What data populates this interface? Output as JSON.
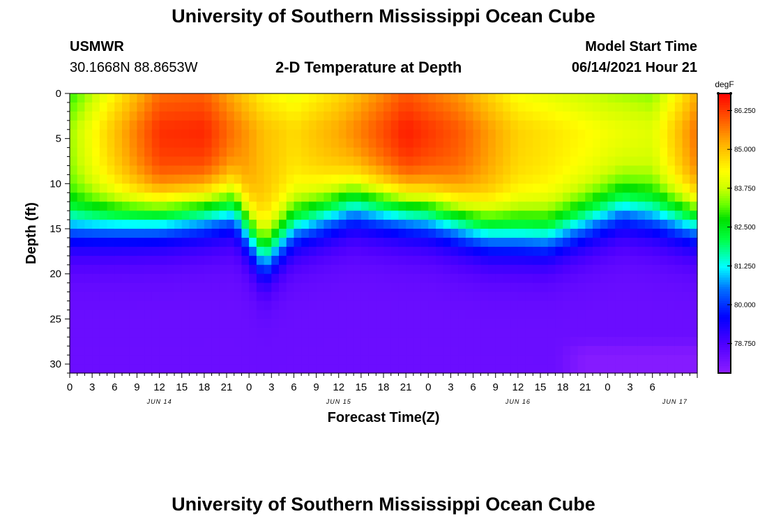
{
  "page": {
    "title_top": "University of Southern Mississippi Ocean Cube",
    "title_bottom": "University of Southern Mississippi Ocean Cube",
    "station_name": "USMWR",
    "station_coords": "30.1668N  88.8653W",
    "plot_title": "2-D Temperature at Depth",
    "model_start_label": "Model Start Time",
    "model_start_value": "06/14/2021 Hour 21"
  },
  "chart_data": {
    "type": "heatmap",
    "title": "2-D Temperature at Depth",
    "xlabel": "Forecast Time(Z)",
    "ylabel": "Depth (ft)",
    "x_hours": [
      0,
      84
    ],
    "ylim": [
      0,
      31
    ],
    "y_ticks": [
      0,
      5,
      10,
      15,
      20,
      25,
      30
    ],
    "x_tick_labels": [
      "0",
      "3",
      "6",
      "9",
      "12",
      "15",
      "18",
      "21",
      "0",
      "3",
      "6",
      "9",
      "12",
      "15",
      "18",
      "21",
      "0",
      "3",
      "6",
      "9",
      "12",
      "15",
      "18",
      "21",
      "0",
      "3",
      "6"
    ],
    "date_labels": [
      {
        "label": "JUN 14",
        "hour": 12
      },
      {
        "label": "JUN 15",
        "hour": 36
      },
      {
        "label": "JUN 16",
        "hour": 60
      },
      {
        "label": "JUN 17",
        "hour": 81
      }
    ],
    "colorbar": {
      "unit": "degF",
      "min": 77.8,
      "max": 86.8,
      "tick_labels": [
        "86.250",
        "85.000",
        "83.750",
        "82.500",
        "81.250",
        "80.000",
        "78.750"
      ],
      "tick_values": [
        86.25,
        85.0,
        83.75,
        82.5,
        81.25,
        80.0,
        78.75
      ]
    },
    "surface_temperature_degF": [
      {
        "hour": 0,
        "value": 83.5
      },
      {
        "hour": 6,
        "value": 85.0
      },
      {
        "hour": 12,
        "value": 86.4
      },
      {
        "hour": 18,
        "value": 86.5
      },
      {
        "hour": 26,
        "value": 85.0
      },
      {
        "hour": 30,
        "value": 84.7
      },
      {
        "hour": 36,
        "value": 85.3
      },
      {
        "hour": 45,
        "value": 86.6
      },
      {
        "hour": 52,
        "value": 86.0
      },
      {
        "hour": 60,
        "value": 84.8
      },
      {
        "hour": 72,
        "value": 84.2
      },
      {
        "hour": 78,
        "value": 84.0
      },
      {
        "hour": 84,
        "value": 85.8
      }
    ],
    "thermocline_depth_ft": [
      {
        "hour": 0,
        "value": 14.5
      },
      {
        "hour": 12,
        "value": 13.5
      },
      {
        "hour": 22,
        "value": 12.5
      },
      {
        "hour": 26,
        "value": 18.0
      },
      {
        "hour": 30,
        "value": 14.5
      },
      {
        "hour": 38,
        "value": 12.0
      },
      {
        "hour": 48,
        "value": 13.0
      },
      {
        "hour": 56,
        "value": 15.0
      },
      {
        "hour": 64,
        "value": 15.5
      },
      {
        "hour": 74,
        "value": 12.5
      },
      {
        "hour": 84,
        "value": 14.0
      }
    ],
    "bottom_temperature_degF": 78.3,
    "bottom_min_temperature_degF": 77.9
  }
}
